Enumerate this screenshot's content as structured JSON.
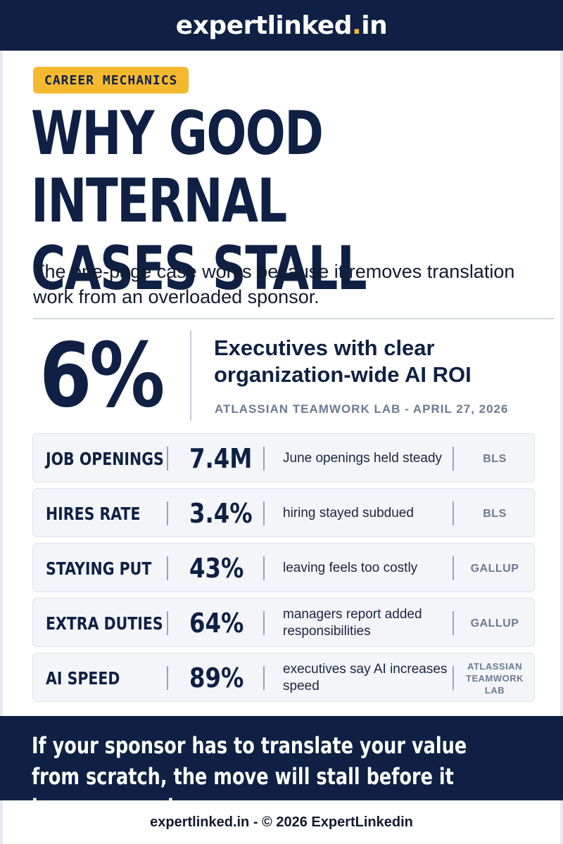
{
  "header": {
    "brand_main": "expertlinked",
    "brand_dot": ".",
    "brand_tld": "in"
  },
  "article": {
    "tag": "CAREER MECHANICS",
    "headline_line1": "WHY GOOD INTERNAL",
    "headline_line2": "CASES STALL",
    "subtitle": "The one-page case works because it removes translation work from an overloaded sponsor."
  },
  "key_stat": {
    "value": "6%",
    "label": "Executives with clear organization-wide AI ROI",
    "source": "ATLASSIAN TEAMWORK LAB - APRIL 27, 2026"
  },
  "stats": [
    {
      "label": "JOB OPENINGS",
      "value": "7.4M",
      "desc": "June openings held steady",
      "source": "BLS"
    },
    {
      "label": "HIRES RATE",
      "value": "3.4%",
      "desc": "hiring stayed subdued",
      "source": "BLS"
    },
    {
      "label": "STAYING PUT",
      "value": "43%",
      "desc": "leaving feels too costly",
      "source": "GALLUP"
    },
    {
      "label": "EXTRA DUTIES",
      "value": "64%",
      "desc": "managers report added responsibilities",
      "source": "GALLUP"
    },
    {
      "label": "AI SPEED",
      "value": "89%",
      "desc": "executives say AI increases speed",
      "source": "ATLASSIAN TEAMWORK LAB"
    }
  ],
  "quote": "If your sponsor has to translate your value from scratch, the move will stall before it becomes a role.",
  "footer": "expertlinked.in - © 2026 ExpertLinkedin",
  "colors": {
    "navy": "#0f2044",
    "accent": "#f5b930",
    "muted": "#6b7a93"
  }
}
